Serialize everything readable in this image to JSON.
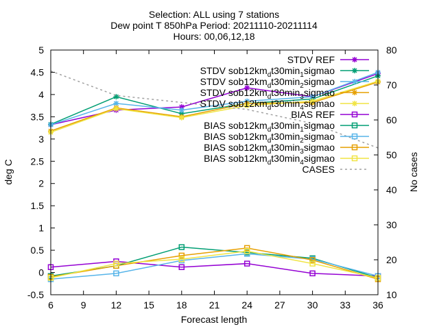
{
  "chart_data": {
    "type": "line",
    "title_lines": [
      "Selection: ALL using     7 stations",
      "Dew point T 850hPa   Period: 20211110-20211114",
      "Hours: 00,06,12,18"
    ],
    "xlabel": "Forecast length",
    "ylabel": "deg C",
    "y2label": "No cases",
    "xlim": [
      6,
      36
    ],
    "ylim": [
      -0.5,
      5
    ],
    "y2lim": [
      10,
      80
    ],
    "xticks": [
      "6",
      "9",
      "12",
      "15",
      "18",
      "21",
      "24",
      "27",
      "30",
      "33",
      "36"
    ],
    "yticks": [
      "-0.5",
      "0",
      "0.5",
      "1",
      "1.5",
      "2",
      "2.5",
      "3",
      "3.5",
      "4",
      "4.5",
      "5"
    ],
    "y2ticks": [
      "10",
      "20",
      "30",
      "40",
      "50",
      "60",
      "70",
      "80"
    ],
    "legend_position": "top-right",
    "x": [
      6,
      12,
      18,
      24,
      30,
      36
    ],
    "series": [
      {
        "name": "STDV REF",
        "axis": "y",
        "marker": "star",
        "color": "#9400d3",
        "values": [
          3.32,
          3.65,
          3.72,
          4.15,
          3.95,
          4.47
        ]
      },
      {
        "name": "STDV sob12km_d t30min_1 sigmao",
        "axis": "y",
        "marker": "star",
        "color": "#009e73",
        "values": [
          3.33,
          3.95,
          3.57,
          3.8,
          3.9,
          4.42
        ]
      },
      {
        "name": "STDV sob12km_d t30min_2 sigmao",
        "axis": "y",
        "marker": "star",
        "color": "#56b4e9",
        "values": [
          3.32,
          3.8,
          3.65,
          3.85,
          3.95,
          4.5
        ]
      },
      {
        "name": "STDV sob12km_d t30min_3 sigmao",
        "axis": "y",
        "marker": "star",
        "color": "#e69f00",
        "values": [
          3.18,
          3.7,
          3.5,
          3.8,
          3.82,
          4.28
        ]
      },
      {
        "name": "STDV sob12km_d t30min_4 sigmao",
        "axis": "y",
        "marker": "star",
        "color": "#f0e442",
        "values": [
          3.15,
          3.68,
          3.48,
          3.75,
          3.85,
          4.3
        ]
      },
      {
        "name": "BIAS REF",
        "axis": "y",
        "marker": "square",
        "color": "#9400d3",
        "values": [
          0.12,
          0.25,
          0.12,
          0.2,
          -0.02,
          -0.08
        ]
      },
      {
        "name": "BIAS sob12km_d t30min_1 sigmao",
        "axis": "y",
        "marker": "square",
        "color": "#009e73",
        "values": [
          -0.08,
          0.15,
          0.57,
          0.45,
          0.32,
          -0.12
        ]
      },
      {
        "name": "BIAS sob12km_d t30min_2 sigmao",
        "axis": "y",
        "marker": "square",
        "color": "#56b4e9",
        "values": [
          -0.15,
          -0.02,
          0.27,
          0.42,
          0.3,
          -0.08
        ]
      },
      {
        "name": "BIAS sob12km_d t30min_3 sigmao",
        "axis": "y",
        "marker": "square",
        "color": "#e69f00",
        "values": [
          -0.1,
          0.15,
          0.38,
          0.55,
          0.28,
          -0.15
        ]
      },
      {
        "name": "BIAS sob12km_d t30min_4 sigmao",
        "axis": "y",
        "marker": "square",
        "color": "#f0e442",
        "values": [
          -0.12,
          0.2,
          0.3,
          0.48,
          0.2,
          -0.12
        ]
      },
      {
        "name": "CASES",
        "axis": "y2",
        "marker": "none",
        "dashed": true,
        "color": "#a0a0a0",
        "values": [
          74,
          67,
          65,
          63,
          59,
          52
        ]
      }
    ]
  }
}
